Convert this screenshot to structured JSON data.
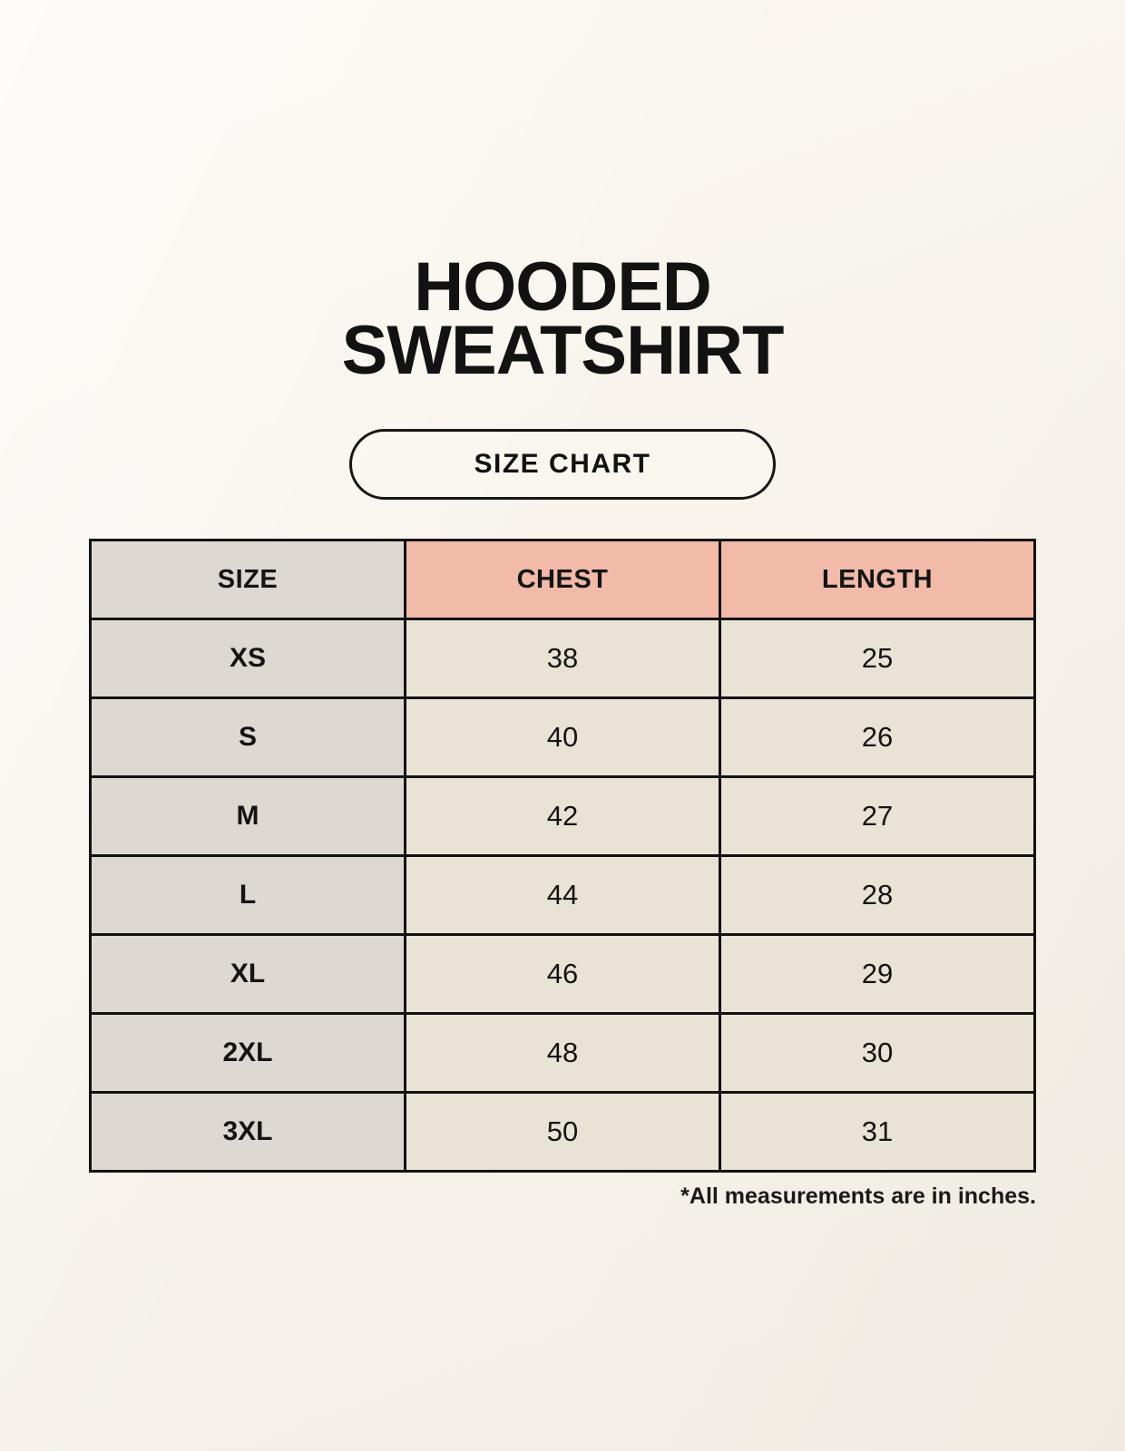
{
  "page": {
    "title_line1": "HOODED",
    "title_line2": "SWEATSHIRT",
    "size_chart_button": "SIZE CHART",
    "footnote": "*All measurements are in inches."
  },
  "colors": {
    "background": "#f8f4ec",
    "text": "#121212",
    "table_border": "#121212",
    "header_accent": "#f1baa9",
    "size_column_bg": "#ded8d2",
    "value_cell_bg": "#e9e3d6"
  },
  "chart_data": {
    "type": "table",
    "title": "HOODED SWEATSHIRT",
    "subtitle": "SIZE CHART",
    "columns": [
      "SIZE",
      "CHEST",
      "LENGTH"
    ],
    "rows": [
      {
        "size": "XS",
        "chest": 38,
        "length": 25
      },
      {
        "size": "S",
        "chest": 40,
        "length": 26
      },
      {
        "size": "M",
        "chest": 42,
        "length": 27
      },
      {
        "size": "L",
        "chest": 44,
        "length": 28
      },
      {
        "size": "XL",
        "chest": 46,
        "length": 29
      },
      {
        "size": "2XL",
        "chest": 48,
        "length": 30
      },
      {
        "size": "3XL",
        "chest": 50,
        "length": 31
      }
    ],
    "units": "inches",
    "note": "*All measurements are in inches."
  }
}
